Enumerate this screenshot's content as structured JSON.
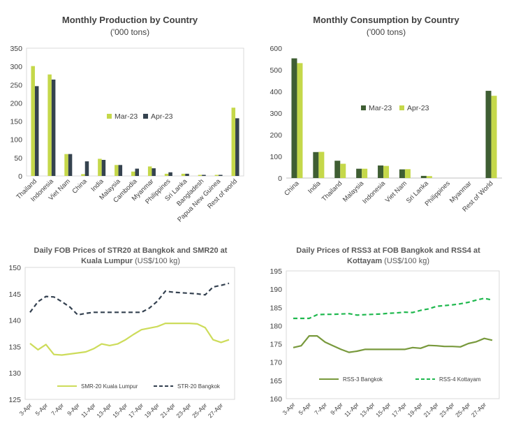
{
  "colors": {
    "lime": "#c5d84a",
    "dark_slate": "#35434f",
    "dark_green": "#3f5e33",
    "lime_line": "#cddc5a",
    "dashed_dark": "#344150",
    "olive_line": "#78993c",
    "green_dashed": "#1fb84e"
  },
  "chart_data": [
    {
      "type": "bar",
      "title": "Monthly Production by Country",
      "subtitle": "('000 tons)",
      "categories": [
        "Thailand",
        "Indonesia",
        "Viet Nam",
        "China",
        "India",
        "Malaysia",
        "Cambodia",
        "Myanmar",
        "Philippines",
        "Sri Lanka",
        "Bangladesh",
        "Papua New Guinea",
        "Rest of world"
      ],
      "series": [
        {
          "name": "Mar-23",
          "color": "#c5d84a",
          "values": [
            301,
            278,
            60,
            5,
            47,
            30,
            12,
            26,
            6,
            6,
            3,
            3,
            187
          ]
        },
        {
          "name": "Apr-23",
          "color": "#35434f",
          "values": [
            246,
            264,
            60,
            40,
            44,
            30,
            20,
            21,
            10,
            6,
            3,
            3,
            158
          ]
        }
      ],
      "ylim": [
        0,
        350
      ],
      "yticks": [
        "0",
        "50",
        "100",
        "150",
        "200",
        "250",
        "300",
        "350"
      ],
      "legend_position": "center-right",
      "grid": false
    },
    {
      "type": "bar",
      "title": "Monthly Consumption by Country",
      "subtitle": "('000 tons)",
      "categories": [
        "China",
        "India",
        "Thailand",
        "Malaysia",
        "Indonesia",
        "Viet Nam",
        "Sri Lanka",
        "Philippines",
        "Myanmar",
        "Rest of World"
      ],
      "series": [
        {
          "name": "Mar-23",
          "color": "#3f5e33",
          "values": [
            553,
            120,
            80,
            43,
            58,
            40,
            10,
            0,
            0,
            403
          ]
        },
        {
          "name": "Apr-23",
          "color": "#c5d84a",
          "values": [
            531,
            121,
            66,
            43,
            56,
            41,
            9,
            0,
            0,
            380
          ]
        }
      ],
      "ylim": [
        0,
        600
      ],
      "yticks": [
        "0",
        "100",
        "200",
        "300",
        "400",
        "500",
        "600"
      ],
      "legend_position": "center-right",
      "grid": false
    },
    {
      "type": "line",
      "title": "Daily FOB Prices of STR20 at Bangkok and SMR20 at Kuala Lumpur (US$/100 kg)",
      "title_line1": "Daily FOB Prices of STR20 at Bangkok and SMR20 at",
      "title_line2_bold": "Kuala Lumpur",
      "title_line2_unit": " (US$/100 kg)",
      "x": [
        "3-Apr",
        "4-Apr",
        "5-Apr",
        "6-Apr",
        "7-Apr",
        "8-Apr",
        "9-Apr",
        "10-Apr",
        "11-Apr",
        "12-Apr",
        "13-Apr",
        "14-Apr",
        "15-Apr",
        "16-Apr",
        "17-Apr",
        "18-Apr",
        "19-Apr",
        "20-Apr",
        "21-Apr",
        "22-Apr",
        "23-Apr",
        "24-Apr",
        "25-Apr",
        "26-Apr",
        "27-Apr",
        "28-Apr"
      ],
      "xticks": [
        "3-Apr",
        "5-Apr",
        "7-Apr",
        "9-Apr",
        "11-Apr",
        "13-Apr",
        "15-Apr",
        "17-Apr",
        "19-Apr",
        "21-Apr",
        "23-Apr",
        "25-Apr",
        "27-Apr"
      ],
      "series": [
        {
          "name": "SMR-20 Kuala Lumpur",
          "color": "#cddc5a",
          "dash": false,
          "values": [
            135.6,
            134.4,
            135.4,
            133.5,
            133.4,
            133.6,
            133.8,
            134.0,
            134.6,
            135.5,
            135.2,
            135.5,
            136.3,
            137.3,
            138.2,
            138.5,
            138.8,
            139.4,
            139.4,
            139.4,
            139.4,
            139.3,
            138.6,
            136.3,
            135.8,
            136.3
          ]
        },
        {
          "name": "STR-20 Bangkok",
          "color": "#344150",
          "dash": true,
          "values": [
            141.5,
            143.5,
            144.5,
            144.4,
            143.5,
            142.5,
            141.0,
            141.3,
            141.5,
            141.5,
            141.5,
            141.5,
            141.5,
            141.5,
            141.5,
            142.3,
            143.6,
            145.5,
            145.3,
            145.2,
            145.1,
            145.0,
            144.8,
            146.3,
            146.6,
            147.0
          ]
        }
      ],
      "ylim": [
        125,
        150
      ],
      "yticks": [
        "125",
        "130",
        "135",
        "140",
        "145",
        "150"
      ],
      "legend_position": "bottom",
      "grid": false
    },
    {
      "type": "line",
      "title": "Daily Prices of RSS3 at FOB Bangkok and RSS4 at Kottayam (US$/100 kg)",
      "title_line1": "Daily Prices of RSS3 at FOB Bangkok and RSS4 at",
      "title_line2_bold": "Kottayam",
      "title_line2_unit": " (US$/100 kg)",
      "x": [
        "3-Apr",
        "4-Apr",
        "5-Apr",
        "6-Apr",
        "7-Apr",
        "8-Apr",
        "9-Apr",
        "10-Apr",
        "11-Apr",
        "12-Apr",
        "13-Apr",
        "14-Apr",
        "15-Apr",
        "16-Apr",
        "17-Apr",
        "18-Apr",
        "19-Apr",
        "20-Apr",
        "21-Apr",
        "22-Apr",
        "23-Apr",
        "24-Apr",
        "25-Apr",
        "26-Apr",
        "27-Apr",
        "28-Apr"
      ],
      "xticks": [
        "3-Apr",
        "5-Apr",
        "7-Apr",
        "9-Apr",
        "11-Apr",
        "13-Apr",
        "15-Apr",
        "17-Apr",
        "19-Apr",
        "21-Apr",
        "23-Apr",
        "25-Apr",
        "27-Apr"
      ],
      "series": [
        {
          "name": "RSS-3 Bangkok",
          "color": "#78993c",
          "dash": false,
          "values": [
            174.0,
            174.5,
            177.2,
            177.2,
            175.5,
            174.5,
            173.5,
            172.7,
            173.0,
            173.5,
            173.5,
            173.5,
            173.5,
            173.5,
            173.5,
            174.0,
            173.8,
            174.6,
            174.5,
            174.3,
            174.3,
            174.2,
            175.1,
            175.6,
            176.5,
            176.0
          ]
        },
        {
          "name": "RSS-4 Kottayam",
          "color": "#1fb84e",
          "dash": true,
          "values": [
            182.0,
            182.0,
            182.0,
            183.0,
            183.1,
            183.1,
            183.2,
            183.3,
            182.9,
            183.0,
            183.1,
            183.2,
            183.4,
            183.5,
            183.7,
            183.6,
            184.2,
            184.6,
            185.3,
            185.5,
            185.7,
            186.0,
            186.4,
            187.0,
            187.5,
            187.0
          ]
        }
      ],
      "ylim": [
        160,
        195
      ],
      "yticks": [
        "160",
        "165",
        "170",
        "175",
        "180",
        "185",
        "190",
        "195"
      ],
      "legend_position": "bottom",
      "grid": false
    }
  ]
}
